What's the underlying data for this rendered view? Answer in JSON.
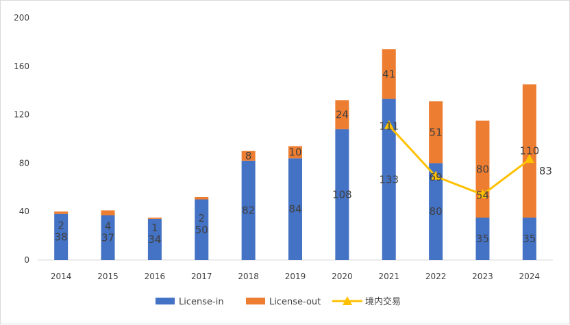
{
  "chart_data": {
    "type": "bar",
    "stacked": true,
    "categories": [
      "2014",
      "2015",
      "2016",
      "2017",
      "2018",
      "2019",
      "2020",
      "2021",
      "2022",
      "2023",
      "2024"
    ],
    "series": [
      {
        "name": "License-in",
        "type": "bar",
        "color": "#4472C4",
        "values": [
          38,
          37,
          34,
          50,
          82,
          84,
          108,
          133,
          80,
          35,
          35
        ],
        "labels": [
          "38",
          "37",
          "34",
          "50",
          "82",
          "84",
          "108",
          "133",
          "80",
          "35",
          "35"
        ]
      },
      {
        "name": "License-out",
        "type": "bar",
        "color": "#ED7D31",
        "values": [
          2,
          4,
          1,
          2,
          8,
          10,
          24,
          41,
          51,
          80,
          110
        ],
        "labels": [
          "2",
          "4",
          "1",
          "2",
          "8",
          "10",
          "24",
          "41",
          "51",
          "80",
          "110"
        ]
      },
      {
        "name": "境内交易",
        "type": "line",
        "color": "#FFC000",
        "points": [
          {
            "x": "2021",
            "y": 111
          },
          {
            "x": "2022",
            "y": 69
          },
          {
            "x": "2023",
            "y": 54
          },
          {
            "x": "2024",
            "y": 83
          }
        ],
        "labels": [
          "111",
          "69",
          "54",
          "83"
        ]
      }
    ],
    "yticks": [
      "0",
      "40",
      "80",
      "120",
      "160",
      "200"
    ],
    "ylim": [
      0,
      200
    ],
    "grid": false,
    "legend": "bottom"
  }
}
